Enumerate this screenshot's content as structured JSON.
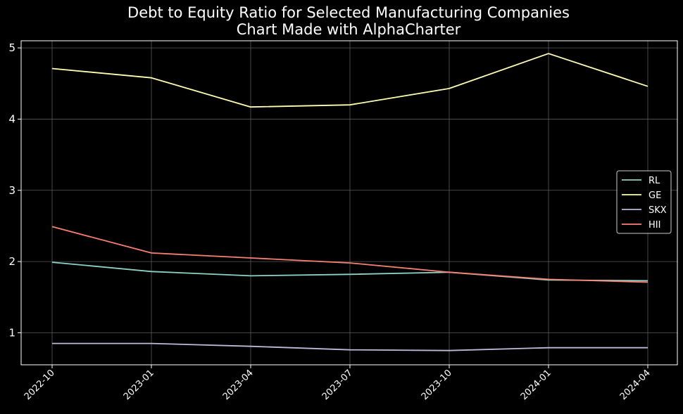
{
  "chart_data": {
    "type": "line",
    "title": "Debt to Equity Ratio for Selected Manufacturing Companies",
    "subtitle": "Chart Made with AlphaCharter",
    "xlabel": "",
    "ylabel": "",
    "x": [
      "2022-10",
      "2023-01",
      "2023-04",
      "2023-07",
      "2023-10",
      "2024-01",
      "2024-04"
    ],
    "ylim": [
      0.55,
      5.1
    ],
    "yticks": [
      1,
      2,
      3,
      4,
      5
    ],
    "grid": true,
    "legend_position": "center-right",
    "background": "#000000",
    "series": [
      {
        "name": "RL",
        "color": "#8dd3c7",
        "values": [
          1.99,
          1.86,
          1.8,
          1.82,
          1.85,
          1.74,
          1.73
        ]
      },
      {
        "name": "GE",
        "color": "#ffffb3",
        "values": [
          4.71,
          4.58,
          4.17,
          4.2,
          4.43,
          4.92,
          4.46
        ]
      },
      {
        "name": "SKX",
        "color": "#bebada",
        "values": [
          0.85,
          0.85,
          0.81,
          0.76,
          0.75,
          0.79,
          0.79
        ]
      },
      {
        "name": "HII",
        "color": "#fb8072",
        "values": [
          2.49,
          2.12,
          2.05,
          1.98,
          1.85,
          1.75,
          1.71
        ]
      }
    ]
  }
}
